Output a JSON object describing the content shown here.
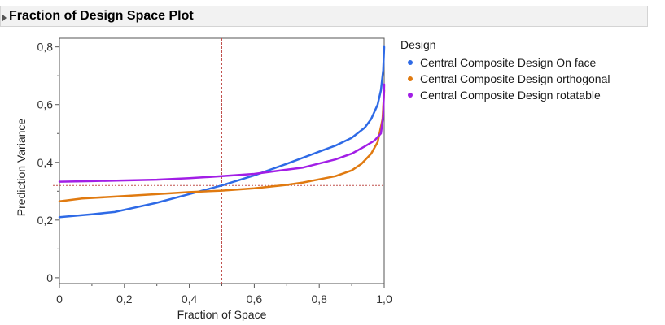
{
  "panel": {
    "title": "Fraction of Design Space Plot"
  },
  "colors": {
    "plot_border": "#555555",
    "reference_line": "#c0504d",
    "axis_text": "#333333"
  },
  "chart_data": {
    "type": "line",
    "xlabel": "Fraction of Space",
    "ylabel": "Prediction Variance",
    "xlim": [
      0,
      1.0
    ],
    "ylim": [
      -0.02,
      0.83
    ],
    "xticks": [
      0,
      0.2,
      0.4,
      0.6,
      0.8,
      1.0
    ],
    "xtick_labels": [
      "0",
      "0,2",
      "0,4",
      "0,6",
      "0,8",
      "1,0"
    ],
    "yticks": [
      0,
      0.2,
      0.4,
      0.6,
      0.8
    ],
    "ytick_labels": [
      "0",
      "0,2",
      "0,4",
      "0,6",
      "0,8"
    ],
    "reference_lines": {
      "x": 0.5,
      "y": 0.32
    },
    "legend": {
      "title": "Design",
      "placement": "right"
    },
    "series": [
      {
        "name": "Central Composite Design On face",
        "color": "#2e6ae6",
        "points": [
          [
            0,
            0.21
          ],
          [
            0.1,
            0.22
          ],
          [
            0.17,
            0.228
          ],
          [
            0.3,
            0.26
          ],
          [
            0.5,
            0.32
          ],
          [
            0.6,
            0.355
          ],
          [
            0.7,
            0.395
          ],
          [
            0.8,
            0.437
          ],
          [
            0.85,
            0.458
          ],
          [
            0.9,
            0.485
          ],
          [
            0.94,
            0.52
          ],
          [
            0.96,
            0.55
          ],
          [
            0.98,
            0.6
          ],
          [
            0.99,
            0.65
          ],
          [
            0.997,
            0.72
          ],
          [
            1.0,
            0.8
          ]
        ]
      },
      {
        "name": "Central Composite Design orthogonal",
        "color": "#e07a10",
        "points": [
          [
            0,
            0.265
          ],
          [
            0.07,
            0.275
          ],
          [
            0.2,
            0.283
          ],
          [
            0.3,
            0.29
          ],
          [
            0.4,
            0.297
          ],
          [
            0.5,
            0.302
          ],
          [
            0.6,
            0.31
          ],
          [
            0.7,
            0.322
          ],
          [
            0.75,
            0.33
          ],
          [
            0.85,
            0.352
          ],
          [
            0.9,
            0.372
          ],
          [
            0.93,
            0.395
          ],
          [
            0.96,
            0.43
          ],
          [
            0.98,
            0.47
          ],
          [
            0.995,
            0.55
          ],
          [
            1.0,
            0.65
          ]
        ]
      },
      {
        "name": "Central Composite Design rotatable",
        "color": "#a21ee6",
        "points": [
          [
            0,
            0.333
          ],
          [
            0.1,
            0.335
          ],
          [
            0.3,
            0.34
          ],
          [
            0.4,
            0.345
          ],
          [
            0.5,
            0.352
          ],
          [
            0.6,
            0.36
          ],
          [
            0.7,
            0.375
          ],
          [
            0.75,
            0.382
          ],
          [
            0.85,
            0.41
          ],
          [
            0.9,
            0.43
          ],
          [
            0.94,
            0.455
          ],
          [
            0.97,
            0.475
          ],
          [
            0.99,
            0.5
          ],
          [
            0.997,
            0.56
          ],
          [
            1.0,
            0.67
          ]
        ]
      }
    ]
  }
}
